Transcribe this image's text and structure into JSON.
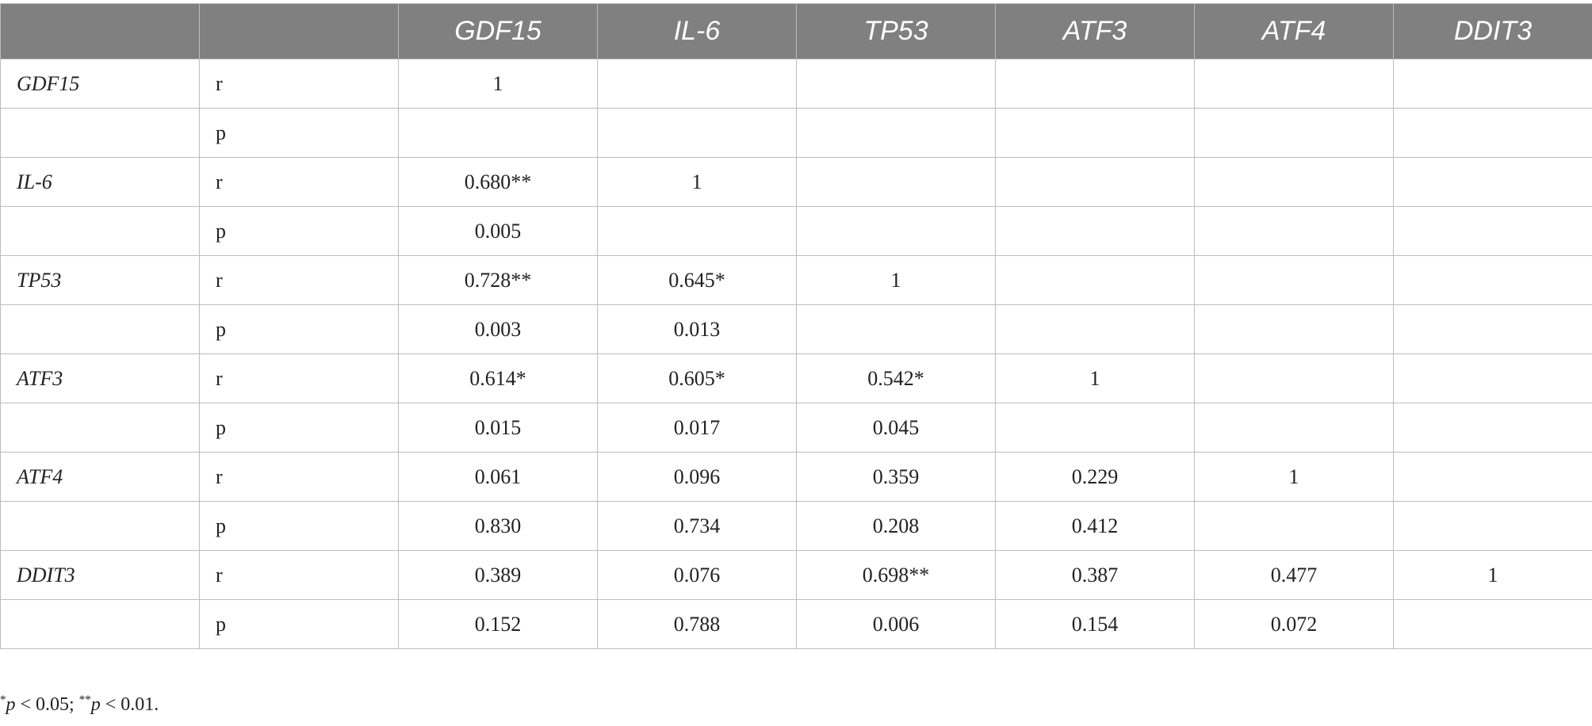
{
  "table": {
    "headers": [
      "",
      "",
      "GDF15",
      "IL-6",
      "TP53",
      "ATF3",
      "ATF4",
      "DDIT3"
    ],
    "rows": [
      {
        "gene": "GDF15",
        "stat": "r",
        "values": [
          "1",
          "",
          "",
          "",
          "",
          ""
        ]
      },
      {
        "gene": "",
        "stat": "p",
        "values": [
          "",
          "",
          "",
          "",
          "",
          ""
        ]
      },
      {
        "gene": "IL-6",
        "stat": "r",
        "values": [
          "0.680**",
          "1",
          "",
          "",
          "",
          ""
        ]
      },
      {
        "gene": "",
        "stat": "p",
        "values": [
          "0.005",
          "",
          "",
          "",
          "",
          ""
        ]
      },
      {
        "gene": "TP53",
        "stat": "r",
        "values": [
          "0.728**",
          "0.645*",
          "1",
          "",
          "",
          ""
        ]
      },
      {
        "gene": "",
        "stat": "p",
        "values": [
          "0.003",
          "0.013",
          "",
          "",
          "",
          ""
        ]
      },
      {
        "gene": "ATF3",
        "stat": "r",
        "values": [
          "0.614*",
          "0.605*",
          "0.542*",
          "1",
          "",
          ""
        ]
      },
      {
        "gene": "",
        "stat": "p",
        "values": [
          "0.015",
          "0.017",
          "0.045",
          "",
          "",
          ""
        ]
      },
      {
        "gene": "ATF4",
        "stat": "r",
        "values": [
          "0.061",
          "0.096",
          "0.359",
          "0.229",
          "1",
          ""
        ]
      },
      {
        "gene": "",
        "stat": "p",
        "values": [
          "0.830",
          "0.734",
          "0.208",
          "0.412",
          "",
          ""
        ]
      },
      {
        "gene": "DDIT3",
        "stat": "r",
        "values": [
          "0.389",
          "0.076",
          "0.698**",
          "0.387",
          "0.477",
          "1"
        ]
      },
      {
        "gene": "",
        "stat": "p",
        "values": [
          "0.152",
          "0.788",
          "0.006",
          "0.154",
          "0.072",
          ""
        ]
      }
    ]
  },
  "footnote": {
    "mark1": "*",
    "p1": "p",
    "text1": " < 0.05; ",
    "mark2": "**",
    "p2": "p",
    "text2": " < 0.01."
  }
}
